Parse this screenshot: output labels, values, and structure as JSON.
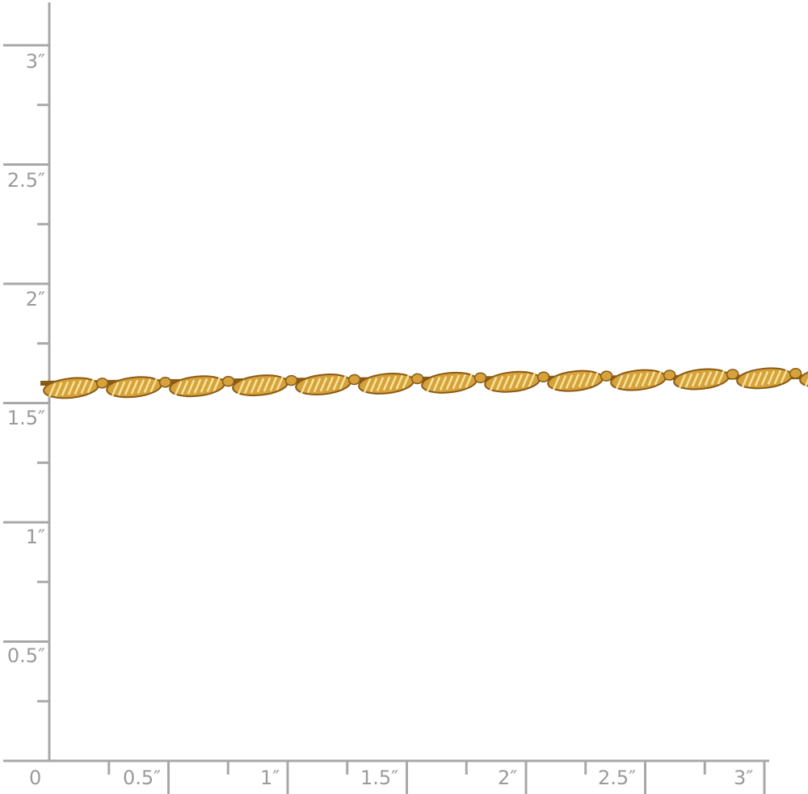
{
  "ruler": {
    "color": "#a8a8a8",
    "label_color": "#9a9a9a",
    "y_axis_labels": [
      "3″",
      "2.5″",
      "2″",
      "1.5″",
      "1″",
      "0.5″"
    ],
    "y_axis_values": [
      3,
      2.5,
      2,
      1.5,
      1,
      0.5
    ],
    "x_axis_labels": [
      "0",
      "0.5″",
      "1″",
      "1.5″",
      "2″",
      "2.5″",
      "3″"
    ],
    "x_axis_values": [
      0,
      0.5,
      1,
      1.5,
      2,
      2.5,
      3
    ]
  },
  "product": {
    "name": "singapore-twisted-chain",
    "colors": {
      "gold": "#d6a23c",
      "shadow": "#8a5a14",
      "highlight": "#f7e39a"
    }
  }
}
